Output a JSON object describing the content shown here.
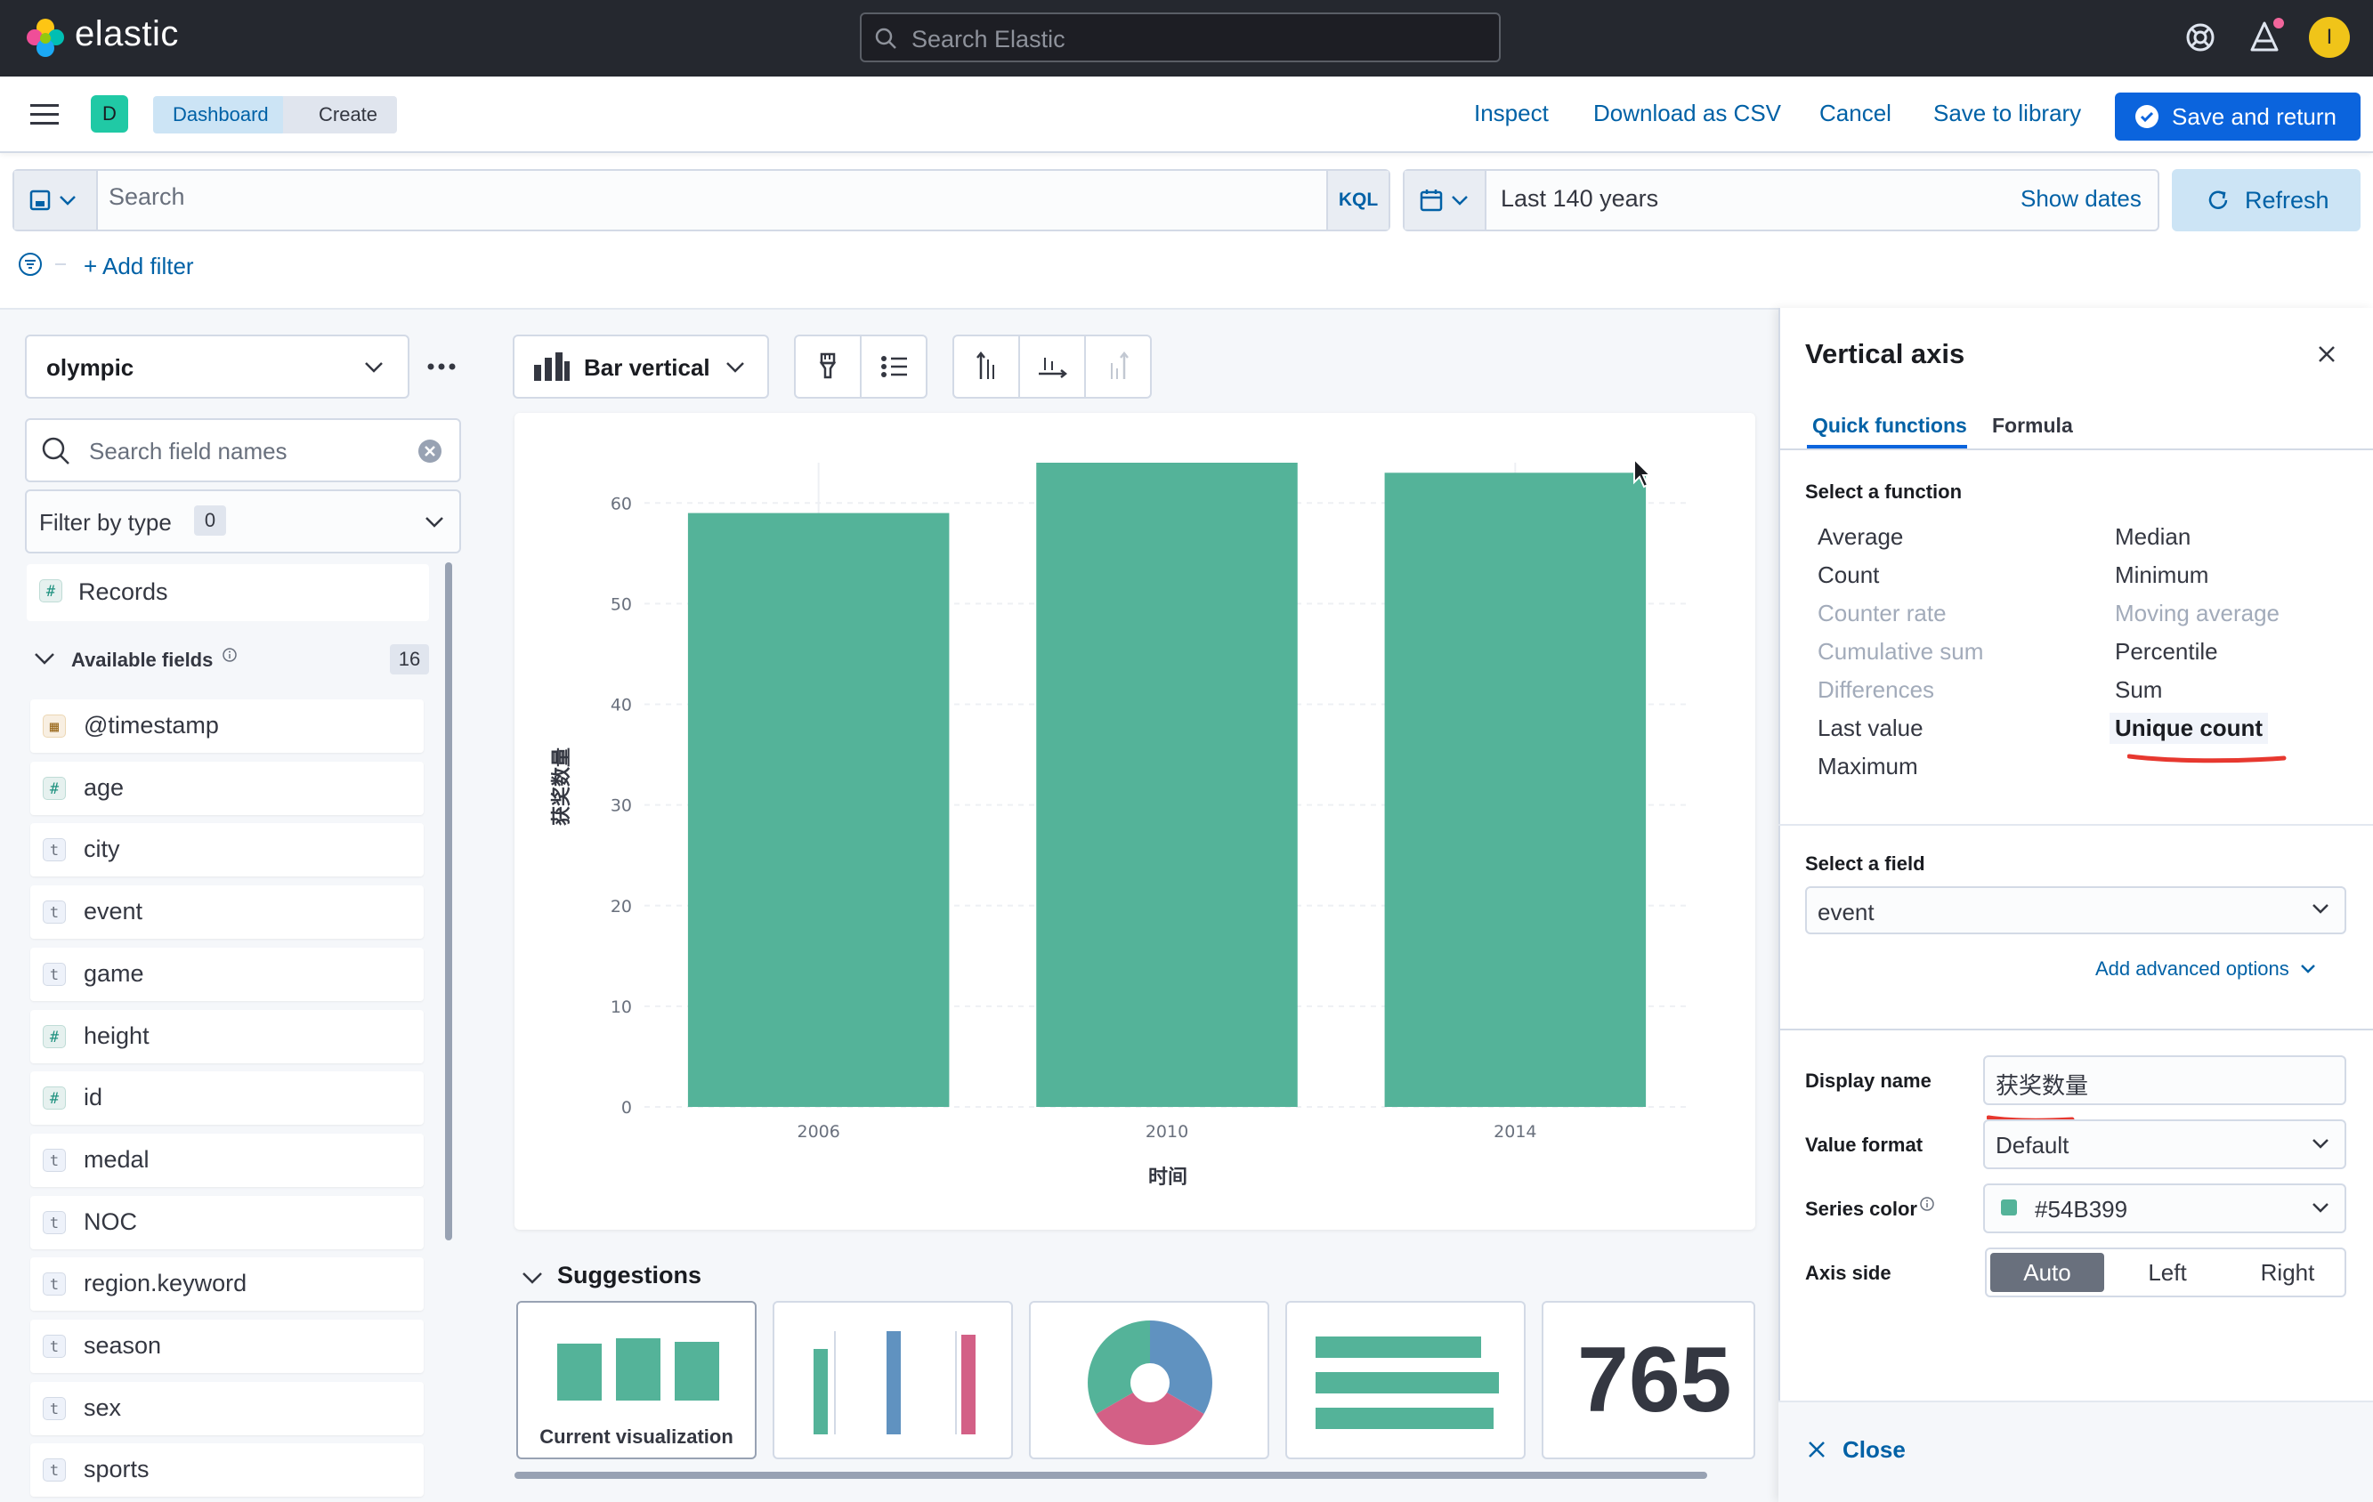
{
  "header": {
    "brand": "elastic",
    "search_placeholder": "Search Elastic",
    "user_initial": "I"
  },
  "appbar": {
    "space_initial": "D",
    "breadcrumbs": [
      "Dashboard",
      "Create"
    ],
    "links": {
      "inspect": "Inspect",
      "download": "Download as CSV",
      "cancel": "Cancel",
      "save_library": "Save to library"
    },
    "save_return": "Save and return"
  },
  "query": {
    "placeholder": "Search",
    "language": "KQL",
    "time_range": "Last 140 years",
    "show_dates": "Show dates",
    "refresh": "Refresh",
    "add_filter": "+ Add filter"
  },
  "left_panel": {
    "data_view": "olympic",
    "field_search_placeholder": "Search field names",
    "filter_by_type": "Filter by type",
    "filter_count": "0",
    "records": "Records",
    "available_label": "Available fields",
    "available_count": "16",
    "fields": [
      {
        "name": "@timestamp",
        "type": "date"
      },
      {
        "name": "age",
        "type": "number"
      },
      {
        "name": "city",
        "type": "string"
      },
      {
        "name": "event",
        "type": "string"
      },
      {
        "name": "game",
        "type": "string"
      },
      {
        "name": "height",
        "type": "number"
      },
      {
        "name": "id",
        "type": "number"
      },
      {
        "name": "medal",
        "type": "string"
      },
      {
        "name": "NOC",
        "type": "string"
      },
      {
        "name": "region.keyword",
        "type": "string"
      },
      {
        "name": "season",
        "type": "string"
      },
      {
        "name": "sex",
        "type": "string"
      },
      {
        "name": "sports",
        "type": "string"
      }
    ]
  },
  "workspace": {
    "vis_type": "Bar vertical",
    "suggestions_label": "Suggestions",
    "current_visualization": "Current visualization",
    "metric_value": "765"
  },
  "chart_data": {
    "type": "bar",
    "categories": [
      "2006",
      "2010",
      "2014"
    ],
    "values": [
      59,
      64,
      63
    ],
    "xlabel": "时间",
    "ylabel": "获奖数量",
    "ylim": [
      0,
      64
    ],
    "yticks": [
      0,
      10,
      20,
      30,
      40,
      50,
      60
    ],
    "color": "#54B399",
    "grid": true
  },
  "flyout": {
    "title": "Vertical axis",
    "tabs": [
      "Quick functions",
      "Formula"
    ],
    "select_function": "Select a function",
    "functions_left": [
      {
        "label": "Average",
        "enabled": true
      },
      {
        "label": "Count",
        "enabled": true
      },
      {
        "label": "Counter rate",
        "enabled": false
      },
      {
        "label": "Cumulative sum",
        "enabled": false
      },
      {
        "label": "Differences",
        "enabled": false
      },
      {
        "label": "Last value",
        "enabled": true
      },
      {
        "label": "Maximum",
        "enabled": true
      }
    ],
    "functions_right": [
      {
        "label": "Median",
        "enabled": true
      },
      {
        "label": "Minimum",
        "enabled": true
      },
      {
        "label": "Moving average",
        "enabled": false
      },
      {
        "label": "Percentile",
        "enabled": true
      },
      {
        "label": "Sum",
        "enabled": true
      },
      {
        "label": "Unique count",
        "enabled": true,
        "selected": true
      }
    ],
    "select_field": "Select a field",
    "field_value": "event",
    "advanced_options": "Add advanced options",
    "display_name_label": "Display name",
    "display_name": "获奖数量",
    "value_format_label": "Value format",
    "value_format": "Default",
    "series_color_label": "Series color",
    "series_color": "#54B399",
    "axis_side_label": "Axis side",
    "axis_side_options": [
      "Auto",
      "Left",
      "Right"
    ],
    "axis_side_selected": "Auto",
    "close": "Close"
  },
  "colors": {
    "accent": "#0b64dd",
    "link": "#0061a6",
    "series": "#54B399",
    "annotation": "#e7382f"
  }
}
